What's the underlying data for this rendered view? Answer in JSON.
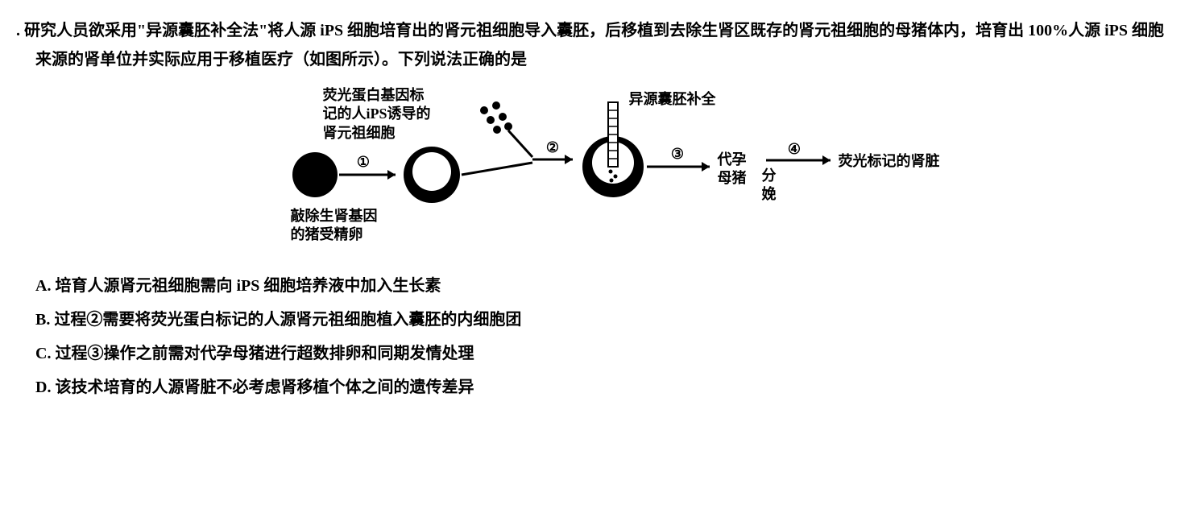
{
  "question": {
    "prefix": ". ",
    "text": "研究人员欲采用\"异源囊胚补全法\"将人源 iPS 细胞培育出的肾元祖细胞导入囊胚，后移植到去除生肾区既存的肾元祖细胞的母猪体内，培育出 100%人源 iPS 细胞来源的肾单位并实际应用于移植医疗（如图所示）。下列说法正确的是"
  },
  "diagram": {
    "labels": {
      "top_left": "荧光蛋白基因标\n记的人iPS诱导的\n肾元祖细胞",
      "top_right": "异源囊胚补全",
      "bottom_zygote": "敲除生肾基因\n的猪受精卵",
      "surrogate": "代孕\n母猪",
      "delivery": "分\n娩",
      "result": "荧光标记的肾脏"
    },
    "steps": {
      "s1": "①",
      "s2": "②",
      "s3": "③",
      "s4": "④"
    },
    "colors": {
      "stroke": "#000000",
      "fill_solid": "#000000",
      "fill_white": "#ffffff"
    }
  },
  "options": {
    "A": "A. 培育人源肾元祖细胞需向 iPS 细胞培养液中加入生长素",
    "B": "B. 过程②需要将荧光蛋白标记的人源肾元祖细胞植入囊胚的内细胞团",
    "C": "C. 过程③操作之前需对代孕母猪进行超数排卵和同期发情处理",
    "D": "D. 该技术培育的人源肾脏不必考虑肾移植个体之间的遗传差异"
  }
}
